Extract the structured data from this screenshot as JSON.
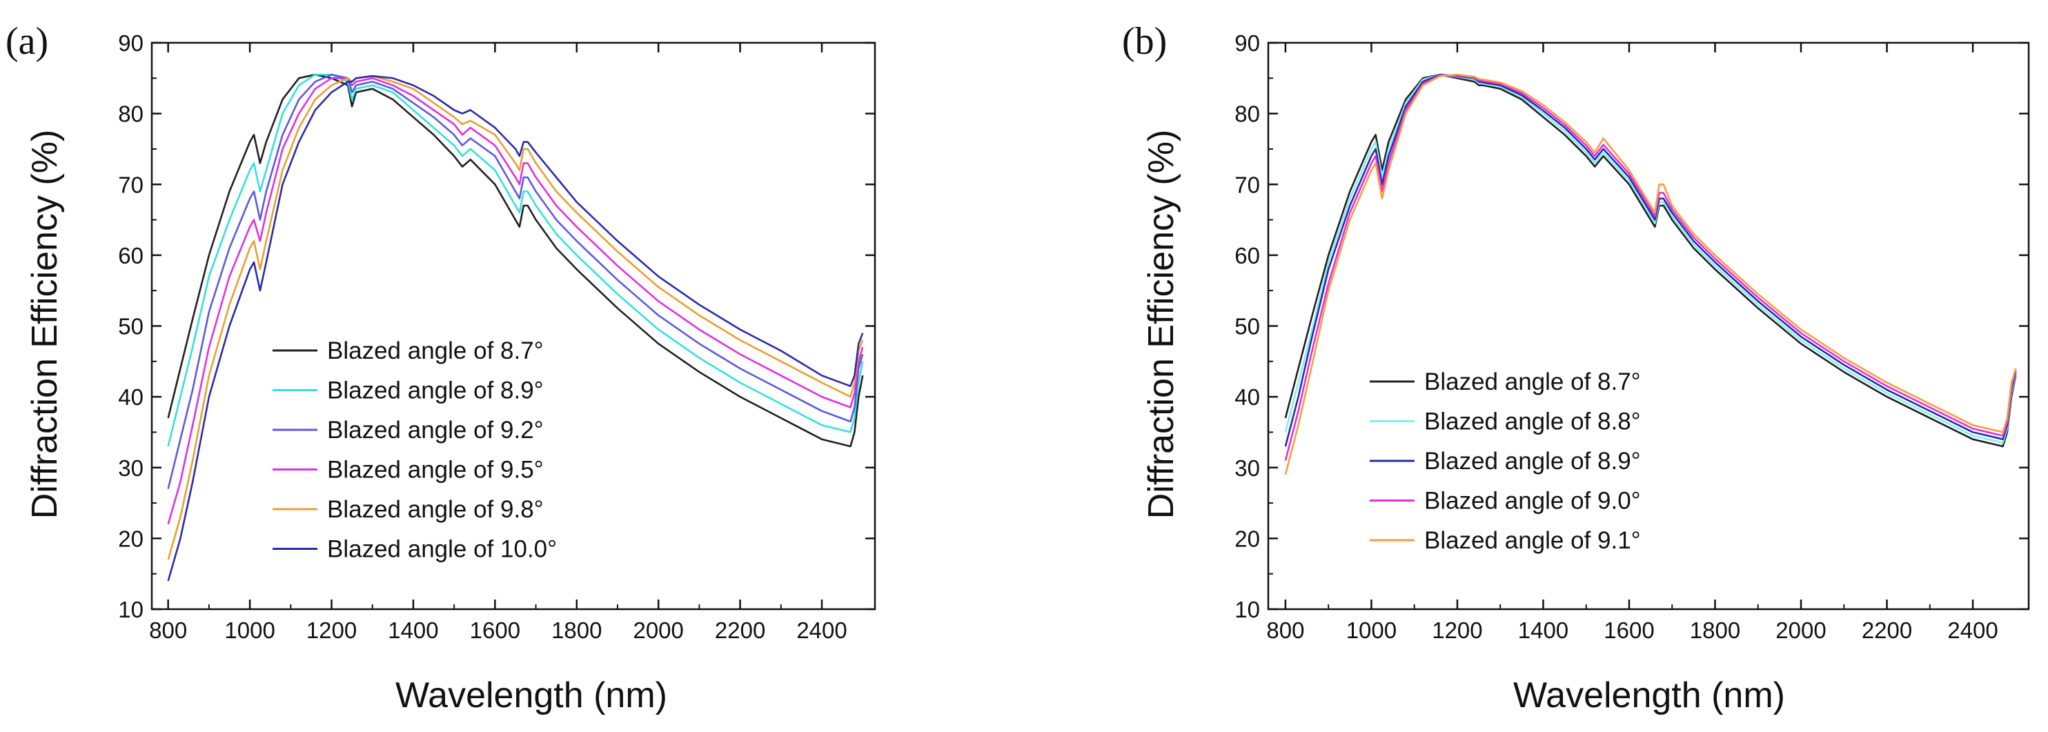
{
  "chart_data": [
    {
      "panel_label": "(a)",
      "type": "line",
      "xlabel": "Wavelength (nm)",
      "ylabel": "Diffraction Efficiency (%)",
      "xlim": [
        760,
        2530
      ],
      "ylim": [
        10,
        90
      ],
      "xticks": [
        800,
        1000,
        1200,
        1400,
        1600,
        1800,
        2000,
        2200,
        2400
      ],
      "yticks": [
        10,
        20,
        30,
        40,
        50,
        60,
        70,
        80,
        90
      ],
      "x": [
        800,
        830,
        860,
        900,
        950,
        1000,
        1010,
        1025,
        1040,
        1080,
        1120,
        1160,
        1200,
        1240,
        1250,
        1260,
        1300,
        1350,
        1400,
        1450,
        1500,
        1520,
        1540,
        1600,
        1650,
        1660,
        1670,
        1680,
        1700,
        1750,
        1800,
        1900,
        2000,
        2100,
        2200,
        2300,
        2400,
        2470,
        2480,
        2490,
        2500
      ],
      "series": [
        {
          "name": "Blazed angle of 8.7°",
          "color": "#202020",
          "values": [
            37,
            44,
            51,
            60,
            69,
            76,
            77,
            73,
            76,
            82,
            85,
            85.5,
            85,
            84,
            81,
            83,
            83.5,
            82,
            79.5,
            77,
            74,
            72.5,
            73.5,
            70,
            65,
            64,
            67,
            67,
            65,
            61,
            58,
            52.5,
            47.5,
            43.5,
            40,
            37,
            34,
            33,
            35,
            40,
            43
          ]
        },
        {
          "name": "Blazed angle of 8.9°",
          "color": "#33e0e0",
          "values": [
            33,
            40,
            47,
            57,
            65,
            72,
            73,
            69,
            72,
            80,
            84,
            85.5,
            85.5,
            84.5,
            82,
            83.5,
            84,
            83,
            80.5,
            78,
            75.5,
            74,
            75,
            72,
            67,
            66,
            69,
            69,
            67,
            63,
            60,
            54.5,
            49.5,
            45.5,
            42,
            39,
            36,
            35,
            37,
            42,
            45
          ]
        },
        {
          "name": "Blazed angle of 9.2°",
          "color": "#5a5ae0",
          "values": [
            27,
            34,
            41,
            52,
            61,
            68,
            69,
            65,
            69,
            77,
            82,
            84.5,
            85.5,
            85,
            83,
            84,
            84.5,
            83.5,
            81.5,
            79.5,
            77,
            75.5,
            76.5,
            74,
            69,
            68,
            71,
            71,
            69,
            65,
            62,
            56.5,
            51.5,
            47.5,
            44,
            41,
            38,
            36.5,
            38.5,
            44,
            46
          ]
        },
        {
          "name": "Blazed angle of 9.5°",
          "color": "#e030e0",
          "values": [
            22,
            28,
            36,
            47,
            57,
            64,
            65,
            62,
            66,
            75,
            80,
            83.5,
            85,
            85,
            84,
            84.5,
            85,
            84,
            82.5,
            80.5,
            78.5,
            77,
            78,
            75.5,
            71,
            70,
            73,
            73,
            71,
            67,
            64,
            58.5,
            53.5,
            49.5,
            46,
            43,
            40,
            38.5,
            40.5,
            45,
            47
          ]
        },
        {
          "name": "Blazed angle of 9.8°",
          "color": "#e8a030",
          "values": [
            17,
            23,
            31,
            43,
            53,
            61,
            62,
            58,
            62,
            72,
            78,
            82,
            84,
            85,
            84.5,
            85,
            85.3,
            84.5,
            83.5,
            81.5,
            79.5,
            78.5,
            79,
            77,
            73,
            72,
            75,
            75,
            73,
            69,
            66,
            60.5,
            55.5,
            51.5,
            48,
            45,
            42,
            40,
            42,
            46.5,
            48
          ]
        },
        {
          "name": "Blazed angle of 10.0°",
          "color": "#2a2aa8",
          "values": [
            14,
            20,
            28,
            40,
            50,
            58,
            59,
            55,
            59,
            70,
            76,
            80.5,
            83,
            84.5,
            84.5,
            85,
            85.3,
            85,
            84,
            82.5,
            80.5,
            80,
            80.5,
            78,
            75,
            74,
            76,
            76,
            74.5,
            71,
            67.5,
            62,
            57,
            53,
            49.5,
            46.5,
            43,
            41.5,
            43,
            47.5,
            49
          ]
        }
      ],
      "legend_position": "center-left"
    },
    {
      "panel_label": "(b)",
      "type": "line",
      "xlabel": "Wavelength (nm)",
      "ylabel": "Diffraction Efficiency (%)",
      "xlim": [
        760,
        2530
      ],
      "ylim": [
        10,
        90
      ],
      "xticks": [
        800,
        1000,
        1200,
        1400,
        1600,
        1800,
        2000,
        2200,
        2400
      ],
      "yticks": [
        10,
        20,
        30,
        40,
        50,
        60,
        70,
        80,
        90
      ],
      "x": [
        800,
        830,
        860,
        900,
        950,
        1000,
        1010,
        1025,
        1040,
        1080,
        1120,
        1160,
        1200,
        1240,
        1250,
        1260,
        1300,
        1350,
        1400,
        1450,
        1500,
        1520,
        1540,
        1600,
        1650,
        1660,
        1670,
        1680,
        1700,
        1750,
        1800,
        1900,
        2000,
        2100,
        2200,
        2300,
        2400,
        2470,
        2480,
        2490,
        2500
      ],
      "series": [
        {
          "name": "Blazed angle of 8.7°",
          "color": "#202020",
          "values": [
            37,
            44,
            51,
            60,
            69,
            76,
            77,
            72,
            76,
            82,
            85,
            85.5,
            85,
            84.5,
            84,
            84,
            83.5,
            82,
            79.5,
            77,
            74,
            72.5,
            74,
            70,
            65,
            64,
            67,
            67,
            65,
            61,
            58,
            52.5,
            47.5,
            43.5,
            40,
            37,
            34,
            33,
            35,
            40,
            43
          ]
        },
        {
          "name": "Blazed angle of 8.8°",
          "color": "#7ff0f0",
          "values": [
            35,
            42,
            49,
            59,
            68,
            75,
            76,
            71,
            75,
            81.5,
            84.8,
            85.5,
            85.2,
            84.8,
            84.3,
            84.2,
            83.8,
            82.3,
            80,
            77.5,
            74.5,
            73,
            74.5,
            70.5,
            65.5,
            64.5,
            67.5,
            67.5,
            65.5,
            61.5,
            58.5,
            53,
            48,
            44,
            40.5,
            37.5,
            34.5,
            33.5,
            35.5,
            40.5,
            43.2
          ]
        },
        {
          "name": "Blazed angle of 8.9°",
          "color": "#2a2aa8",
          "values": [
            33,
            40,
            48,
            58,
            67,
            74,
            75,
            70,
            74,
            81,
            84.5,
            85.5,
            85.3,
            85,
            84.5,
            84.4,
            84,
            82.6,
            80.4,
            78,
            75,
            73.5,
            75,
            71,
            66,
            65,
            68,
            68,
            66,
            62,
            59,
            53.5,
            48.5,
            44.5,
            41,
            38,
            35,
            34,
            36,
            41,
            43.5
          ]
        },
        {
          "name": "Blazed angle of 9.0°",
          "color": "#e030e0",
          "values": [
            31,
            38,
            46,
            56,
            66,
            73,
            74,
            69,
            73,
            80.5,
            84.2,
            85.4,
            85.4,
            85.1,
            84.7,
            84.6,
            84.2,
            82.9,
            80.8,
            78.4,
            75.5,
            74,
            75.6,
            71.5,
            66.5,
            65.5,
            68.8,
            68.8,
            66.5,
            62.5,
            59.5,
            54,
            49,
            45,
            41.5,
            38.5,
            35.5,
            34.5,
            36.5,
            41.5,
            43.8
          ]
        },
        {
          "name": "Blazed angle of 9.1°",
          "color": "#ff9a40",
          "values": [
            29,
            36,
            44,
            55,
            65,
            72,
            73,
            68,
            72,
            80,
            84,
            85.3,
            85.5,
            85.2,
            84.9,
            84.8,
            84.4,
            83.2,
            81.2,
            78.8,
            76,
            74.5,
            76.5,
            72,
            67,
            66,
            70,
            70,
            67,
            63,
            60,
            54.5,
            49.5,
            45.5,
            42,
            39,
            36,
            35,
            37,
            42,
            44
          ]
        }
      ],
      "legend_position": "center-left"
    }
  ]
}
